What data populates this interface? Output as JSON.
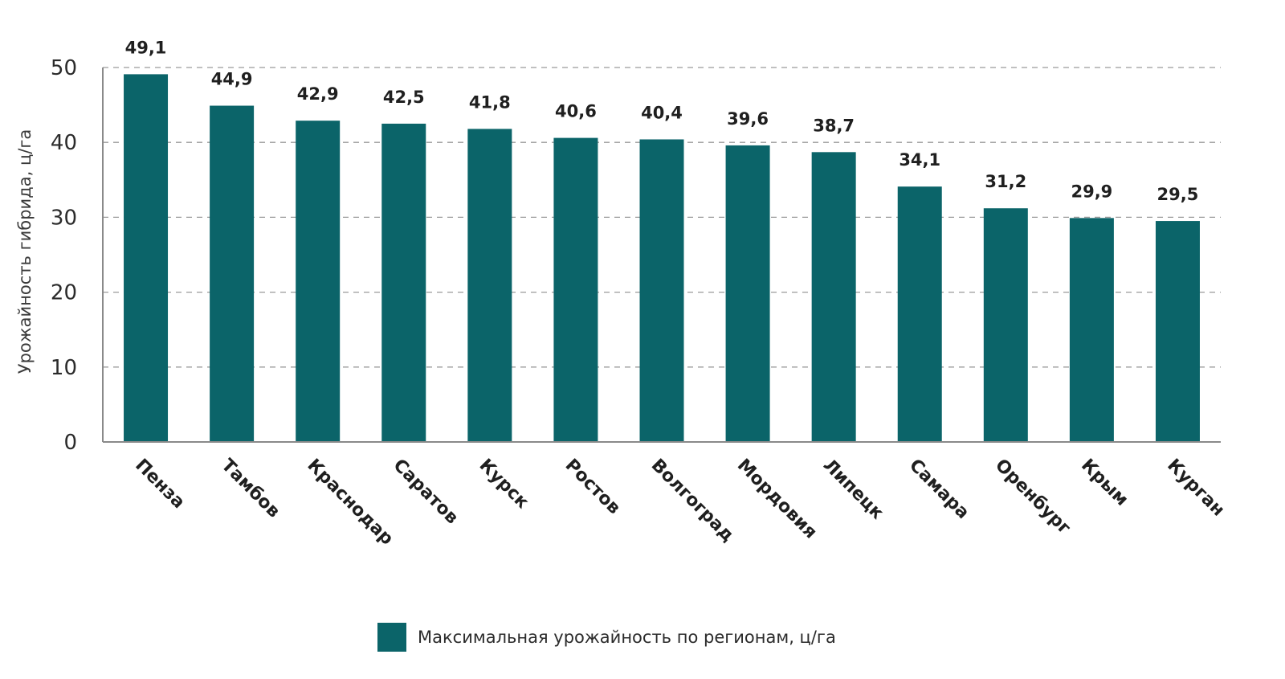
{
  "chart_data": {
    "type": "bar",
    "title": "",
    "xlabel": "",
    "ylabel": "Урожайность гибрида, ц/га",
    "ylim": [
      0,
      50
    ],
    "yticks": [
      0,
      10,
      20,
      30,
      40,
      50
    ],
    "grid": true,
    "legend_position": "bottom",
    "categories": [
      "Пенза",
      "Тамбов",
      "Краснодар",
      "Саратов",
      "Курск",
      "Ростов",
      "Волгоград",
      "Мордовия",
      "Липецк",
      "Самара",
      "Оренбург",
      "Крым",
      "Курган"
    ],
    "series": [
      {
        "name": "Максимальная урожайность по регионам, ц/га",
        "values": [
          49.1,
          44.9,
          42.9,
          42.5,
          41.8,
          40.6,
          40.4,
          39.6,
          38.7,
          34.1,
          31.2,
          29.9,
          29.5
        ],
        "value_labels": [
          "49,1",
          "44,9",
          "42,9",
          "42,5",
          "41,8",
          "40,6",
          "40,4",
          "39,6",
          "38,7",
          "34,1",
          "31,2",
          "29,9",
          "29,5"
        ],
        "color": "#0b6469"
      }
    ]
  }
}
